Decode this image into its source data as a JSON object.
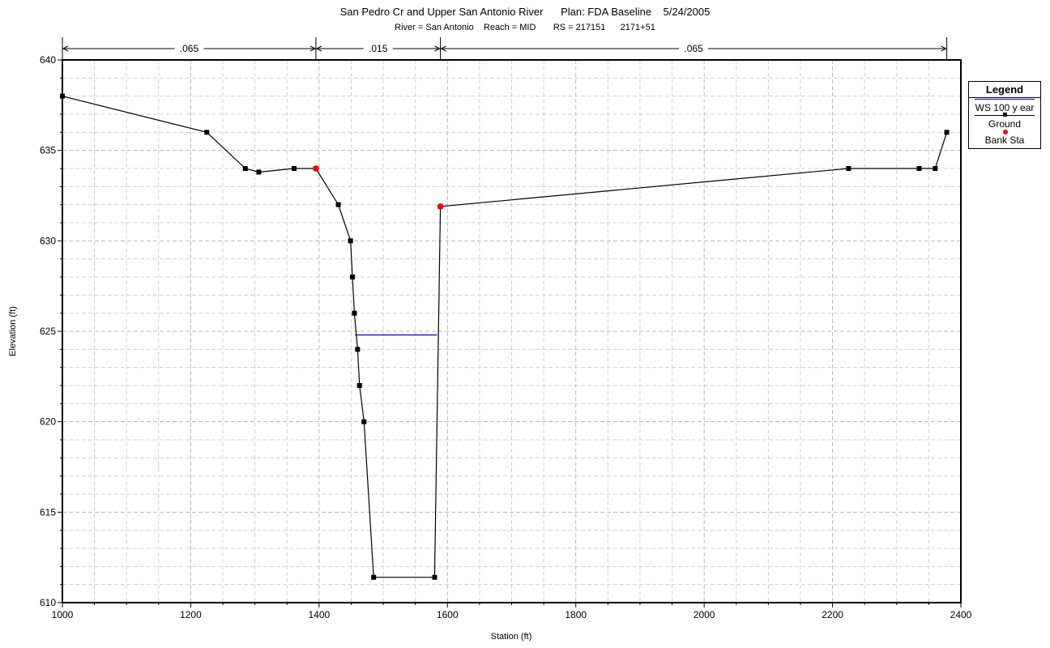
{
  "chart_data": {
    "type": "line",
    "title": "San Pedro Cr and Upper San Antonio River      Plan: FDA Baseline    5/24/2005",
    "subtitle": "River = San Antonio    Reach = MID       RS = 217151      2171+51",
    "xlabel": "Station (ft)",
    "ylabel": "Elevation (ft)",
    "xlim": [
      1000,
      2400
    ],
    "ylim": [
      610,
      640
    ],
    "x_ticks": [
      1000,
      1200,
      1400,
      1600,
      1800,
      2000,
      2200,
      2400
    ],
    "y_ticks": [
      610,
      615,
      620,
      625,
      630,
      635,
      640
    ],
    "x_tick_labels": [
      "1000",
      "1200",
      "1400",
      "1600",
      "1800",
      "2000",
      "2200",
      "2400"
    ],
    "y_tick_labels": [
      "610",
      "615",
      "620",
      "625",
      "630",
      "635",
      "640"
    ],
    "grid": true,
    "legend_position": "right",
    "manning_n": {
      "boundaries": [
        1000,
        1395,
        1589,
        2378
      ],
      "labels": [
        ".065",
        ".015",
        ".065"
      ]
    },
    "series": [
      {
        "name": "WS 100 y ear",
        "style": "line",
        "color": "#0000cc",
        "points": [
          [
            1456,
            624.8
          ],
          [
            1584,
            624.8
          ]
        ]
      },
      {
        "name": "Ground",
        "style": "line-square",
        "color": "#000000",
        "points": [
          [
            1000,
            638.0
          ],
          [
            1225,
            636.0
          ],
          [
            1285,
            634.0
          ],
          [
            1306,
            633.8
          ],
          [
            1361,
            634.0
          ],
          [
            1395,
            634.0
          ],
          [
            1430,
            632.0
          ],
          [
            1449,
            630.0
          ],
          [
            1452,
            628.0
          ],
          [
            1455,
            626.0
          ],
          [
            1460,
            624.0
          ],
          [
            1463,
            622.0
          ],
          [
            1470,
            620.0
          ],
          [
            1485,
            611.4
          ],
          [
            1580,
            611.4
          ],
          [
            1589,
            631.9
          ],
          [
            2225,
            634.0
          ],
          [
            2335,
            634.0
          ],
          [
            2360,
            634.0
          ],
          [
            2378,
            636.0
          ]
        ]
      },
      {
        "name": "Bank Sta",
        "style": "dot",
        "color": "#ff0000",
        "points": [
          [
            1395,
            634.0
          ],
          [
            1589,
            631.9
          ]
        ]
      }
    ]
  },
  "legend": {
    "title": "Legend",
    "items": [
      "WS 100 y ear",
      "Ground",
      "Bank Sta"
    ]
  }
}
